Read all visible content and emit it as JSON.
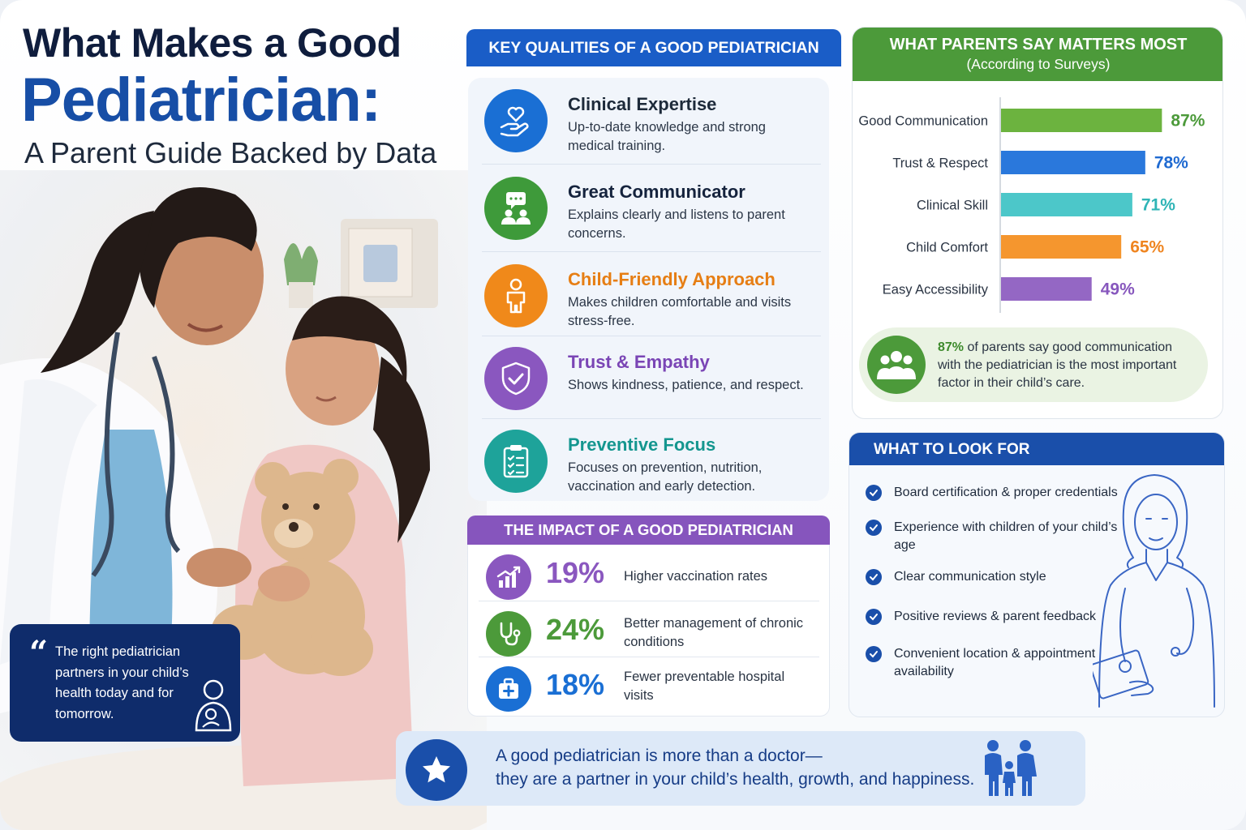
{
  "title": {
    "line1": "What Makes a Good",
    "line2": "Pediatrician:",
    "line3": "A Parent Guide Backed by Data"
  },
  "quote": {
    "mark": "“",
    "text": "The right pediatrician partners in your child’s health today and for tomorrow."
  },
  "key_qualities": {
    "heading": "KEY QUALITIES OF A GOOD PEDIATRICIAN",
    "items": [
      {
        "title": "Clinical Expertise",
        "desc": "Up-to-date knowledge and strong medical training.",
        "color": "#1a6fd4",
        "title_color": "#15233d",
        "icon": "heart-hand-icon"
      },
      {
        "title": "Great Communicator",
        "desc": "Explains clearly and listens to parent concerns.",
        "color": "#3e9a3a",
        "title_color": "#15233d",
        "icon": "chat-people-icon"
      },
      {
        "title": "Child-Friendly Approach",
        "desc": "Makes children comfortable and visits stress-free.",
        "color": "#f0891a",
        "title_color": "#e67e14",
        "icon": "child-icon"
      },
      {
        "title": "Trust & Empathy",
        "desc": "Shows kindness, patience, and respect.",
        "color": "#8a57bf",
        "title_color": "#7a45b5",
        "icon": "shield-check-icon"
      },
      {
        "title": "Preventive Focus",
        "desc": "Focuses on prevention, nutrition, vaccination and early detection.",
        "color": "#1ea39a",
        "title_color": "#14968f",
        "icon": "clipboard-checklist-icon"
      }
    ]
  },
  "impact": {
    "heading": "THE IMPACT OF A GOOD PEDIATRICIAN",
    "items": [
      {
        "value": "19%",
        "desc": "Higher vaccination rates",
        "color": "#8a57bf",
        "icon": "chart-up-icon"
      },
      {
        "value": "24%",
        "desc": "Better management of chronic conditions",
        "color": "#4c9a3a",
        "icon": "stethoscope-icon"
      },
      {
        "value": "18%",
        "desc": "Fewer preventable hospital visits",
        "color": "#1a6fd4",
        "icon": "medical-kit-icon"
      }
    ]
  },
  "survey": {
    "heading": "WHAT PARENTS SAY MATTERS MOST",
    "subheading": "(According to Surveys)",
    "note_highlight": "87%",
    "note_text": " of parents say good communication with the pediatrician is the most important factor in their child’s care."
  },
  "chart_data": {
    "type": "bar",
    "orientation": "horizontal",
    "title": "WHAT PARENTS SAY MATTERS MOST",
    "subtitle": "(According to Surveys)",
    "categories": [
      "Good Communication",
      "Trust & Respect",
      "Clinical Skill",
      "Child Comfort",
      "Easy Accessibility"
    ],
    "values": [
      87,
      78,
      71,
      65,
      49
    ],
    "value_labels": [
      "87%",
      "78%",
      "71%",
      "65%",
      "49%"
    ],
    "colors": [
      "#6cb33f",
      "#2a78dc",
      "#4cc7c9",
      "#f5962e",
      "#9467c4"
    ],
    "label_colors": [
      "#4c9a3a",
      "#1f6ad1",
      "#2fb4b6",
      "#ef8520",
      "#8757bd"
    ],
    "xlim": [
      0,
      100
    ],
    "grid": false,
    "legend": "none"
  },
  "look_for": {
    "heading": "WHAT TO LOOK FOR",
    "items": [
      "Board certification & proper credentials",
      "Experience with children of your child’s age",
      "Clear communication style",
      "Positive reviews & parent feedback",
      "Convenient location & appointment availability"
    ]
  },
  "footer": {
    "line1": "A good pediatrician is more than a doctor—",
    "line2": "they are a partner in your child’s health, growth, and happiness."
  }
}
